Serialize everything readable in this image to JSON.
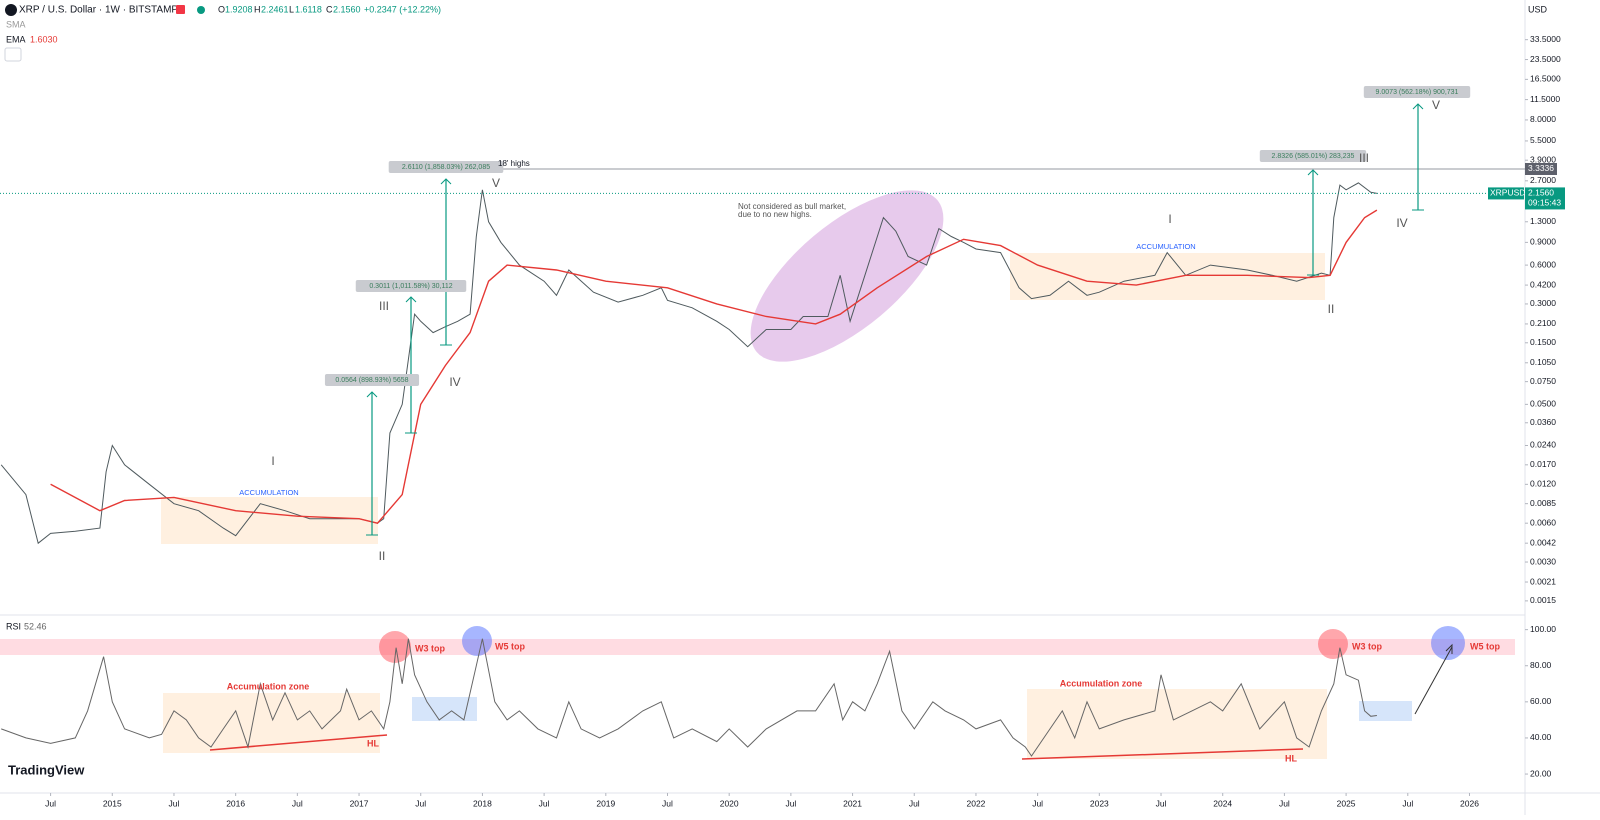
{
  "header": {
    "symbol": "XRP / U.S. Dollar · 1W · BITSTAMP",
    "ohlc": [
      {
        "label": "O",
        "value": "1.9208"
      },
      {
        "label": "H",
        "value": "2.2461"
      },
      {
        "label": "L",
        "value": "1.6118"
      },
      {
        "label": "C",
        "value": "2.1560"
      }
    ],
    "change": "+0.2347 (+12.22%)",
    "sma": "SMA",
    "ema_value": "1.6030",
    "rsi_value": "52.46",
    "currency": "USD",
    "countdown": "09:15:43",
    "brand": "TradingView"
  },
  "chart_data": [
    {
      "type": "line",
      "log_scale": true,
      "xlim": [
        2014.09,
        2026.45
      ],
      "ylim": [
        0.00123,
        68
      ],
      "yticks": [
        {
          "value": 33.5,
          "label": "33.5000"
        },
        {
          "value": 23.5,
          "label": "23.5000"
        },
        {
          "value": 16.5,
          "label": "16.5000"
        },
        {
          "value": 11.5,
          "label": "11.5000"
        },
        {
          "value": 8,
          "label": "8.0000"
        },
        {
          "value": 5.5,
          "label": "5.5000"
        },
        {
          "value": 3.9,
          "label": "3.9000"
        },
        {
          "value": 2.7,
          "label": "2.7000"
        },
        {
          "value": 1.3,
          "label": "1.3000"
        },
        {
          "value": 0.9,
          "label": "0.9000"
        },
        {
          "value": 0.6,
          "label": "0.6000"
        },
        {
          "value": 0.42,
          "label": "0.4200"
        },
        {
          "value": 0.3,
          "label": "0.3000"
        },
        {
          "value": 0.21,
          "label": "0.2100"
        },
        {
          "value": 0.15,
          "label": "0.1500"
        },
        {
          "value": 0.105,
          "label": "0.1050"
        },
        {
          "value": 0.075,
          "label": "0.0750"
        },
        {
          "value": 0.05,
          "label": "0.0500"
        },
        {
          "value": 0.036,
          "label": "0.0360"
        },
        {
          "value": 0.024,
          "label": "0.0240"
        },
        {
          "value": 0.017,
          "label": "0.0170"
        },
        {
          "value": 0.012,
          "label": "0.0120"
        },
        {
          "value": 0.0085,
          "label": "0.0085"
        },
        {
          "value": 0.006,
          "label": "0.0060"
        },
        {
          "value": 0.0042,
          "label": "0.0042"
        },
        {
          "value": 0.003,
          "label": "0.0030"
        },
        {
          "value": 0.0021,
          "label": "0.0021"
        },
        {
          "value": 0.0015,
          "label": "0.0015"
        }
      ],
      "series": [
        {
          "name": "XRPUSD",
          "color": "#4f5a5e",
          "x": [
            2014.1,
            2014.3,
            2014.4,
            2014.5,
            2014.7,
            2014.9,
            2014.95,
            2015.0,
            2015.1,
            2015.3,
            2015.5,
            2015.7,
            2015.9,
            2016.0,
            2016.2,
            2016.4,
            2016.6,
            2016.8,
            2017.0,
            2017.15,
            2017.2,
            2017.25,
            2017.35,
            2017.45,
            2017.5,
            2017.6,
            2017.7,
            2017.8,
            2017.9,
            2017.95,
            2018.0,
            2018.05,
            2018.15,
            2018.3,
            2018.5,
            2018.6,
            2018.7,
            2018.9,
            2019.1,
            2019.3,
            2019.45,
            2019.5,
            2019.7,
            2019.9,
            2020.0,
            2020.15,
            2020.3,
            2020.5,
            2020.6,
            2020.8,
            2020.9,
            2020.98,
            2021.1,
            2021.25,
            2021.35,
            2021.45,
            2021.6,
            2021.7,
            2021.8,
            2021.9,
            2022.0,
            2022.2,
            2022.35,
            2022.45,
            2022.6,
            2022.75,
            2022.9,
            2023.0,
            2023.2,
            2023.45,
            2023.55,
            2023.7,
            2023.9,
            2024.2,
            2024.4,
            2024.6,
            2024.8,
            2024.87,
            2024.9,
            2024.95,
            2025.0,
            2025.1,
            2025.2,
            2025.25
          ],
          "values": [
            0.017,
            0.01,
            0.0042,
            0.005,
            0.0052,
            0.0055,
            0.015,
            0.024,
            0.017,
            0.012,
            0.0085,
            0.0075,
            0.0055,
            0.0048,
            0.0085,
            0.0075,
            0.0065,
            0.0065,
            0.0065,
            0.006,
            0.0065,
            0.03,
            0.05,
            0.25,
            0.22,
            0.18,
            0.2,
            0.22,
            0.25,
            1.0,
            2.3,
            1.3,
            0.9,
            0.6,
            0.45,
            0.35,
            0.55,
            0.37,
            0.31,
            0.35,
            0.4,
            0.32,
            0.28,
            0.22,
            0.19,
            0.14,
            0.19,
            0.19,
            0.24,
            0.24,
            0.5,
            0.22,
            0.5,
            1.4,
            1.1,
            0.7,
            0.6,
            1.15,
            1.0,
            0.9,
            0.8,
            0.75,
            0.4,
            0.33,
            0.35,
            0.45,
            0.35,
            0.37,
            0.45,
            0.5,
            0.75,
            0.5,
            0.6,
            0.55,
            0.5,
            0.45,
            0.52,
            0.5,
            1.4,
            2.5,
            2.3,
            2.6,
            2.2,
            2.156
          ]
        },
        {
          "name": "EMA",
          "color": "#e53935",
          "x": [
            2014.5,
            2014.9,
            2015.1,
            2015.5,
            2016.0,
            2016.5,
            2017.0,
            2017.15,
            2017.35,
            2017.5,
            2017.7,
            2017.9,
            2018.05,
            2018.2,
            2018.6,
            2019.0,
            2019.5,
            2019.9,
            2020.3,
            2020.7,
            2020.9,
            2021.2,
            2021.6,
            2021.9,
            2022.2,
            2022.5,
            2022.9,
            2023.3,
            2023.7,
            2024.2,
            2024.7,
            2024.87,
            2025.0,
            2025.15,
            2025.25
          ],
          "values": [
            0.012,
            0.0075,
            0.009,
            0.0095,
            0.0075,
            0.0068,
            0.0065,
            0.006,
            0.01,
            0.05,
            0.1,
            0.18,
            0.45,
            0.6,
            0.55,
            0.45,
            0.4,
            0.3,
            0.24,
            0.21,
            0.25,
            0.4,
            0.7,
            0.95,
            0.85,
            0.6,
            0.45,
            0.42,
            0.5,
            0.5,
            0.48,
            0.5,
            0.9,
            1.4,
            1.6
          ]
        }
      ],
      "resistance": 3.3336,
      "last_price": {
        "value": 2.156,
        "label": "2.1560"
      },
      "annotations": [
        "18' highs",
        "Not considered as bull market,",
        "due to no new highs.",
        "ACCUMULATION",
        "ACCUMULATION",
        "I",
        "II",
        "III",
        "IV",
        "V",
        "I",
        "II",
        "III",
        "IV",
        "V"
      ],
      "measures": [
        "0.0564 (898.93%) 5658",
        "0.3011 (1,011.58%) 30,112",
        "2.6110 (1,858.03%) 262,085",
        "2.8326 (585.01%) 283,235",
        "9.0073 (562.18%) 900,731"
      ]
    },
    {
      "type": "line",
      "xlim": [
        2014.09,
        2026.45
      ],
      "ylim": [
        9.5,
        107
      ],
      "yticks": [
        {
          "value": 100,
          "label": "100.00"
        },
        {
          "value": 80,
          "label": "80.00"
        },
        {
          "value": 60,
          "label": "60.00"
        },
        {
          "value": 40,
          "label": "40.00"
        },
        {
          "value": 20,
          "label": "20.00"
        }
      ],
      "xticks": [
        {
          "value": 2014.5,
          "label": "Jul"
        },
        2015,
        {
          "value": 2015.5,
          "label": "Jul"
        },
        2016,
        {
          "value": 2016.5,
          "label": "Jul"
        },
        2017,
        {
          "value": 2017.5,
          "label": "Jul"
        },
        2018,
        {
          "value": 2018.5,
          "label": "Jul"
        },
        2019,
        {
          "value": 2019.5,
          "label": "Jul"
        },
        2020,
        {
          "value": 2020.5,
          "label": "Jul"
        },
        2021,
        {
          "value": 2021.5,
          "label": "Jul"
        },
        2022,
        {
          "value": 2022.5,
          "label": "Jul"
        },
        2023,
        {
          "value": 2023.5,
          "label": "Jul"
        },
        2024,
        {
          "value": 2024.5,
          "label": "Jul"
        },
        2025,
        {
          "value": 2025.5,
          "label": "Jul"
        },
        2026
      ],
      "series": [
        {
          "name": "RSI",
          "color": "#666666",
          "x": [
            2014.1,
            2014.3,
            2014.5,
            2014.7,
            2014.8,
            2014.93,
            2015.0,
            2015.1,
            2015.3,
            2015.4,
            2015.5,
            2015.6,
            2015.7,
            2015.8,
            2015.9,
            2016.0,
            2016.1,
            2016.2,
            2016.3,
            2016.4,
            2016.5,
            2016.6,
            2016.7,
            2016.85,
            2016.9,
            2017.0,
            2017.1,
            2017.2,
            2017.25,
            2017.3,
            2017.35,
            2017.4,
            2017.45,
            2017.55,
            2017.65,
            2017.75,
            2017.85,
            2017.95,
            2018.0,
            2018.1,
            2018.2,
            2018.3,
            2018.45,
            2018.6,
            2018.7,
            2018.8,
            2018.95,
            2019.1,
            2019.3,
            2019.45,
            2019.55,
            2019.7,
            2019.9,
            2020.0,
            2020.15,
            2020.3,
            2020.55,
            2020.7,
            2020.85,
            2020.92,
            2021.0,
            2021.1,
            2021.2,
            2021.3,
            2021.4,
            2021.5,
            2021.65,
            2021.75,
            2021.9,
            2022.0,
            2022.2,
            2022.3,
            2022.4,
            2022.45,
            2022.6,
            2022.7,
            2022.8,
            2022.9,
            2023.0,
            2023.2,
            2023.45,
            2023.5,
            2023.6,
            2023.75,
            2023.9,
            2024.0,
            2024.15,
            2024.3,
            2024.5,
            2024.6,
            2024.7,
            2024.8,
            2024.9,
            2024.95,
            2025.0,
            2025.1,
            2025.15,
            2025.2,
            2025.25
          ],
          "values": [
            45,
            40,
            37,
            40,
            55,
            85,
            60,
            45,
            40,
            42,
            55,
            50,
            40,
            35,
            45,
            55,
            35,
            70,
            50,
            65,
            50,
            55,
            45,
            55,
            67,
            50,
            55,
            45,
            60,
            90,
            70,
            95,
            75,
            60,
            50,
            55,
            50,
            80,
            95,
            60,
            50,
            55,
            45,
            40,
            60,
            45,
            40,
            45,
            55,
            60,
            40,
            45,
            38,
            45,
            35,
            45,
            55,
            55,
            70,
            50,
            60,
            55,
            70,
            88,
            55,
            45,
            60,
            55,
            50,
            45,
            50,
            40,
            35,
            30,
            45,
            55,
            40,
            60,
            45,
            50,
            55,
            75,
            50,
            55,
            60,
            55,
            70,
            45,
            60,
            40,
            35,
            55,
            70,
            90,
            75,
            72,
            55,
            52,
            52.46
          ]
        }
      ],
      "annotations": [
        "Accumulation zone",
        "Accumulation zone",
        "W3 top",
        "W3 top",
        "W5 top",
        "W5 top",
        "HL",
        "HL"
      ]
    }
  ]
}
